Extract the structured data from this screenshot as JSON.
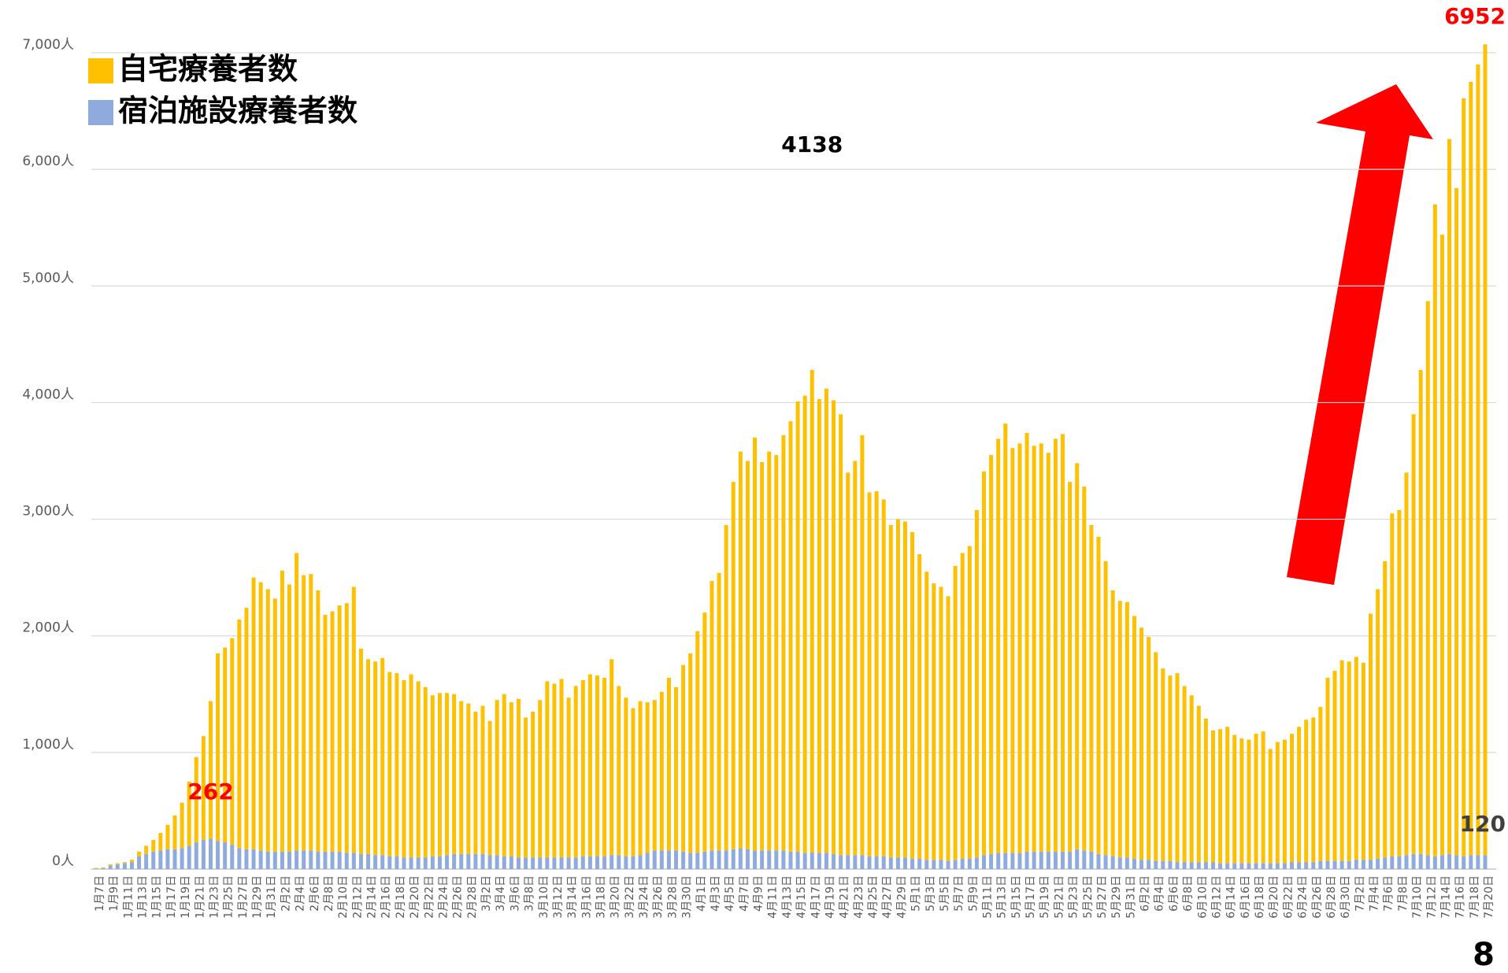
{
  "chart_data": {
    "type": "stacked_bar",
    "categories": [
      "1月7日",
      null,
      "1月9日",
      null,
      "1月11日",
      null,
      "1月13日",
      null,
      "1月15日",
      null,
      "1月17日",
      null,
      "1月19日",
      null,
      "1月21日",
      null,
      "1月23日",
      null,
      "1月25日",
      null,
      "1月27日",
      null,
      "1月29日",
      null,
      "1月31日",
      null,
      "2月2日",
      null,
      "2月4日",
      null,
      "2月6日",
      null,
      "2月8日",
      null,
      "2月10日",
      null,
      "2月12日",
      null,
      "2月14日",
      null,
      "2月16日",
      null,
      "2月18日",
      null,
      "2月20日",
      null,
      "2月22日",
      null,
      "2月24日",
      null,
      "2月26日",
      null,
      "2月28日",
      null,
      "3月2日",
      null,
      "3月4日",
      null,
      "3月6日",
      null,
      "3月8日",
      null,
      "3月10日",
      null,
      "3月12日",
      null,
      "3月14日",
      null,
      "3月16日",
      null,
      "3月18日",
      null,
      "3月20日",
      null,
      "3月22日",
      null,
      "3月24日",
      null,
      "3月26日",
      null,
      "3月28日",
      null,
      "3月30日",
      null,
      "4月1日",
      null,
      "4月3日",
      null,
      "4月5日",
      null,
      "4月7日",
      null,
      "4月9日",
      null,
      "4月11日",
      null,
      "4月13日",
      null,
      "4月15日",
      null,
      "4月17日",
      null,
      "4月19日",
      null,
      "4月21日",
      null,
      "4月23日",
      null,
      "4月25日",
      null,
      "4月27日",
      null,
      "4月29日",
      null,
      "5月1日",
      null,
      "5月3日",
      null,
      "5月5日",
      null,
      "5月7日",
      null,
      "5月9日",
      null,
      "5月11日",
      null,
      "5月13日",
      null,
      "5月15日",
      null,
      "5月17日",
      null,
      "5月19日",
      null,
      "5月21日",
      null,
      "5月23日",
      null,
      "5月25日",
      null,
      "5月27日",
      null,
      "5月29日",
      null,
      "5月31日",
      null,
      "6月2日",
      null,
      "6月4日",
      null,
      "6月6日",
      null,
      "6月8日",
      null,
      "6月10日",
      null,
      "6月12日",
      null,
      "6月14日",
      null,
      "6月16日",
      null,
      "6月18日",
      null,
      "6月20日",
      null,
      "6月22日",
      null,
      "6月24日",
      null,
      "6月26日",
      null,
      "6月28日",
      null,
      "6月30日",
      null,
      "7月2日",
      null,
      "7月4日",
      null,
      "7月6日",
      null,
      "7月8日",
      null,
      "7月10日",
      null,
      "7月12日",
      null,
      "7月14日",
      null,
      "7月16日",
      null,
      "7月18日",
      null,
      "7月20日"
    ],
    "series": [
      {
        "name": "自宅療養者数",
        "color": "#ffc000",
        "values": [
          5,
          7,
          10,
          10,
          10,
          20,
          40,
          70,
          100,
          150,
          210,
          290,
          390,
          550,
          730,
          890,
          1178,
          1610,
          1670,
          1770,
          1960,
          2070,
          2330,
          2300,
          2250,
          2170,
          2410,
          2290,
          2550,
          2360,
          2370,
          2240,
          2030,
          2060,
          2110,
          2140,
          2280,
          1760,
          1670,
          1660,
          1690,
          1580,
          1570,
          1520,
          1570,
          1510,
          1460,
          1380,
          1400,
          1390,
          1370,
          1310,
          1290,
          1220,
          1270,
          1150,
          1330,
          1390,
          1320,
          1360,
          1200,
          1250,
          1350,
          1510,
          1490,
          1530,
          1370,
          1470,
          1510,
          1560,
          1550,
          1530,
          1680,
          1450,
          1360,
          1270,
          1320,
          1290,
          1290,
          1360,
          1480,
          1400,
          1600,
          1710,
          1900,
          2050,
          2310,
          2380,
          2790,
          3150,
          3400,
          3330,
          3540,
          3330,
          3420,
          3390,
          3560,
          3690,
          3860,
          3920,
          4138,
          3890,
          3980,
          3890,
          3780,
          3280,
          3380,
          3600,
          3120,
          3130,
          3060,
          2850,
          2900,
          2880,
          2800,
          2610,
          2470,
          2370,
          2340,
          2270,
          2520,
          2620,
          2680,
          2980,
          3290,
          3420,
          3550,
          3680,
          3470,
          3510,
          3590,
          3480,
          3500,
          3420,
          3540,
          3580,
          3170,
          3310,
          3120,
          2800,
          2720,
          2520,
          2280,
          2200,
          2190,
          2080,
          1990,
          1910,
          1790,
          1650,
          1590,
          1620,
          1510,
          1430,
          1340,
          1230,
          1130,
          1150,
          1170,
          1100,
          1070,
          1060,
          1110,
          1130,
          980,
          1040,
          1060,
          1100,
          1160,
          1220,
          1240,
          1320,
          1570,
          1630,
          1720,
          1710,
          1740,
          1690,
          2110,
          2310,
          2540,
          2940,
          2970,
          3280,
          3770,
          4150,
          4750,
          5590,
          5320,
          6130,
          5720,
          6500,
          6630,
          6780,
          6952
        ]
      },
      {
        "name": "宿泊施設療養者数",
        "color": "#8faadc",
        "values": [
          5,
          8,
          30,
          40,
          50,
          60,
          110,
          130,
          150,
          160,
          170,
          170,
          180,
          200,
          230,
          250,
          262,
          240,
          230,
          210,
          180,
          170,
          170,
          160,
          150,
          150,
          150,
          150,
          160,
          160,
          160,
          150,
          150,
          150,
          150,
          140,
          140,
          130,
          130,
          120,
          120,
          110,
          110,
          100,
          100,
          100,
          100,
          110,
          110,
          120,
          130,
          130,
          130,
          130,
          130,
          120,
          120,
          110,
          110,
          100,
          100,
          100,
          100,
          100,
          100,
          100,
          100,
          100,
          110,
          110,
          110,
          110,
          120,
          120,
          110,
          110,
          120,
          140,
          160,
          160,
          160,
          160,
          150,
          140,
          140,
          150,
          160,
          160,
          160,
          170,
          180,
          170,
          160,
          160,
          160,
          160,
          160,
          150,
          150,
          140,
          142,
          140,
          140,
          130,
          120,
          120,
          120,
          120,
          110,
          110,
          110,
          100,
          100,
          100,
          90,
          90,
          80,
          80,
          80,
          70,
          80,
          90,
          90,
          100,
          120,
          130,
          140,
          140,
          140,
          140,
          150,
          150,
          150,
          150,
          150,
          150,
          150,
          170,
          160,
          150,
          130,
          120,
          110,
          100,
          100,
          90,
          80,
          80,
          70,
          70,
          70,
          60,
          60,
          60,
          60,
          60,
          60,
          50,
          50,
          50,
          50,
          50,
          50,
          50,
          50,
          50,
          50,
          60,
          60,
          60,
          60,
          70,
          70,
          70,
          70,
          70,
          80,
          80,
          80,
          90,
          100,
          110,
          110,
          120,
          130,
          130,
          120,
          110,
          120,
          130,
          120,
          110,
          120,
          120,
          120
        ]
      }
    ],
    "data_labels": [
      {
        "series": 1,
        "index": 16,
        "color": "#ff0000"
      },
      {
        "series": 0,
        "index": 100,
        "color": "#000000"
      },
      {
        "series": 0,
        "index": 194,
        "color": "#ff0000"
      },
      {
        "series": 1,
        "index": 194,
        "color": "#404040"
      }
    ],
    "ylim": [
      0,
      7000
    ],
    "yticks": [
      {
        "value": 0,
        "label": "0人"
      },
      {
        "value": 1000,
        "label": "1,000人"
      },
      {
        "value": 2000,
        "label": "2,000人"
      },
      {
        "value": 3000,
        "label": "3,000人"
      },
      {
        "value": 4000,
        "label": "4,000人"
      },
      {
        "value": 5000,
        "label": "5,000人"
      },
      {
        "value": 6000,
        "label": "6,000人"
      },
      {
        "value": 7000,
        "label": "7,000人"
      }
    ],
    "grid": true,
    "legend": "top-left",
    "page_number": "8"
  }
}
